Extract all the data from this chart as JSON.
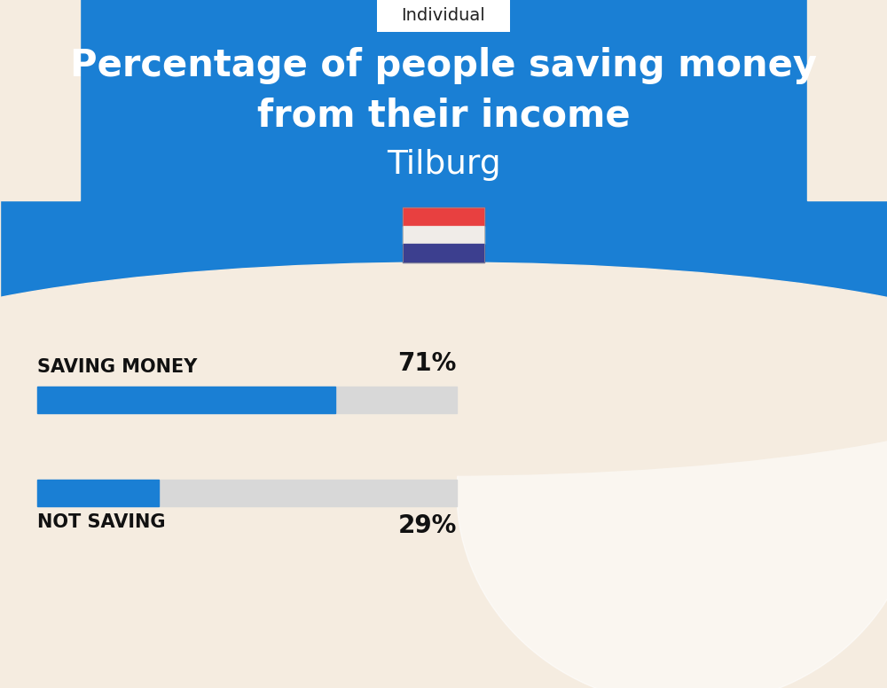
{
  "title_line1": "Percentage of people saving money",
  "title_line2": "from their income",
  "city": "Tilburg",
  "tab_label": "Individual",
  "bg_color": "#f5ece0",
  "blue_bg": "#1a7fd4",
  "bar_blue": "#1a7fd4",
  "bar_gray": "#d8d8d8",
  "categories": [
    "SAVING MONEY",
    "NOT SAVING"
  ],
  "values": [
    71,
    29
  ],
  "value_labels": [
    "71%",
    "29%"
  ],
  "title_color": "#ffffff",
  "city_color": "#ffffff",
  "label_color": "#111111",
  "value_color": "#111111",
  "tab_color": "#ffffff",
  "tab_text_color": "#222222",
  "flag_colors_top_to_bottom": [
    "#E84040",
    "#f0ece8",
    "#3C3F8F"
  ],
  "title_fontsize": 30,
  "city_fontsize": 27,
  "label_fontsize": 15,
  "value_fontsize": 20,
  "tab_fontsize": 14
}
